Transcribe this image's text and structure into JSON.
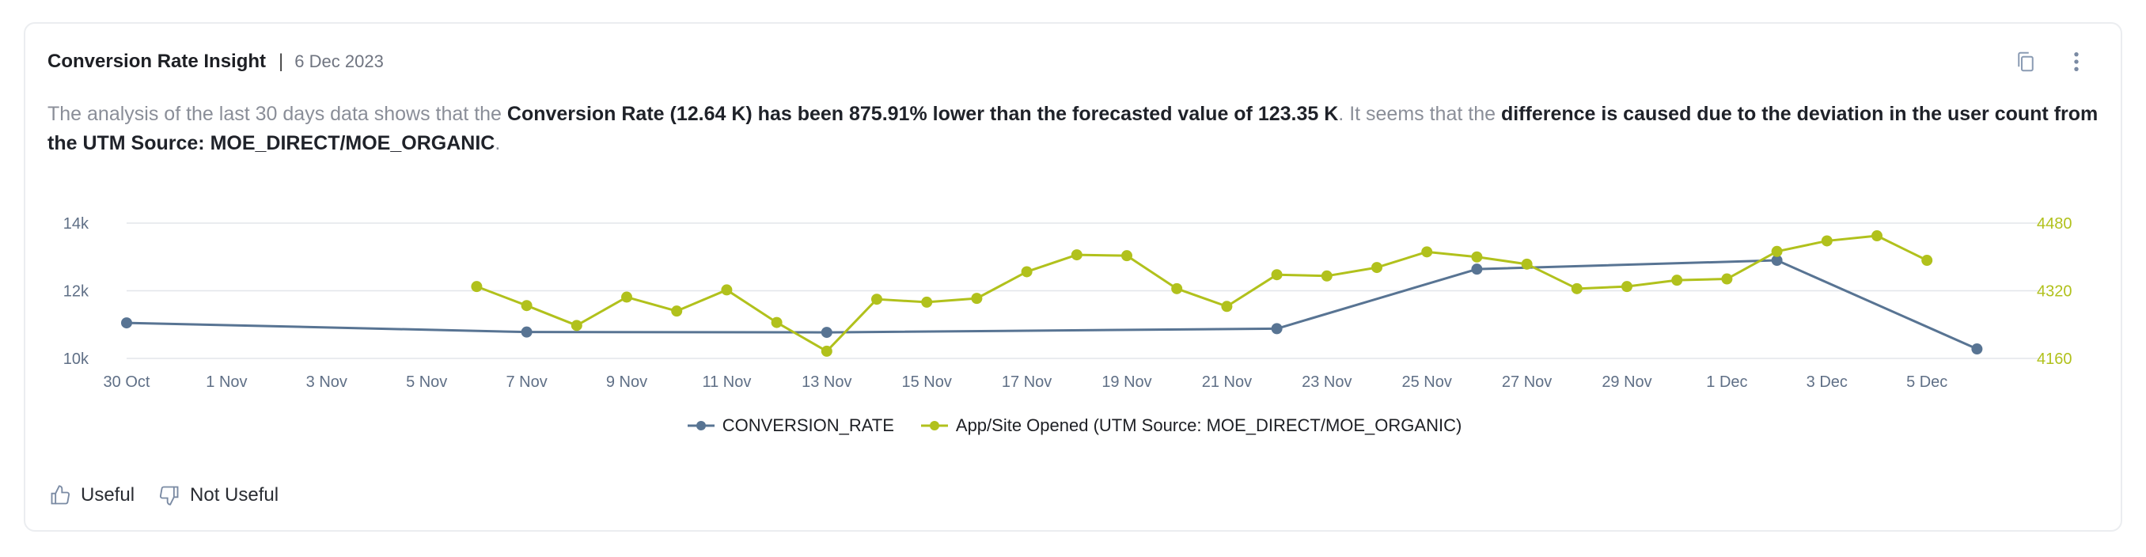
{
  "card": {
    "title": "Conversion Rate Insight",
    "separator": "|",
    "date": "6 Dec 2023",
    "icons": [
      "copy-icon",
      "more-vertical-icon"
    ]
  },
  "description": {
    "p1": "The analysis of the last 30 days data shows that the ",
    "b1": "Conversion Rate (12.64 K) has been 875.91% lower than the forecasted value of 123.35 K",
    "p2": ". It seems that the ",
    "b2": "difference is caused due to the deviation in the user count from the UTM Source: MOE_DIRECT/MOE_ORGANIC",
    "p3": "."
  },
  "chart_data": {
    "type": "line",
    "dates": [
      "30 Oct",
      "31 Oct",
      "1 Nov",
      "2 Nov",
      "3 Nov",
      "4 Nov",
      "5 Nov",
      "6 Nov",
      "7 Nov",
      "8 Nov",
      "9 Nov",
      "10 Nov",
      "11 Nov",
      "12 Nov",
      "13 Nov",
      "14 Nov",
      "15 Nov",
      "16 Nov",
      "17 Nov",
      "18 Nov",
      "19 Nov",
      "20 Nov",
      "21 Nov",
      "22 Nov",
      "23 Nov",
      "24 Nov",
      "25 Nov",
      "26 Nov",
      "27 Nov",
      "28 Nov",
      "29 Nov",
      "30 Nov",
      "1 Dec",
      "2 Dec",
      "3 Dec",
      "4 Dec",
      "5 Dec",
      "6 Dec"
    ],
    "x_tick_labels": [
      "30 Oct",
      "1 Nov",
      "3 Nov",
      "5 Nov",
      "7 Nov",
      "9 Nov",
      "11 Nov",
      "13 Nov",
      "15 Nov",
      "17 Nov",
      "19 Nov",
      "21 Nov",
      "23 Nov",
      "25 Nov",
      "27 Nov",
      "29 Nov",
      "1 Dec",
      "3 Dec",
      "5 Dec"
    ],
    "y_left": {
      "ticks": [
        "10k",
        "12k",
        "14k"
      ],
      "range": [
        10000,
        14000
      ]
    },
    "y_right": {
      "ticks": [
        "4160",
        "4320",
        "4480"
      ],
      "range": [
        4160,
        4480
      ]
    },
    "grid": true,
    "legend_position": "bottom-center",
    "series": [
      {
        "name": "CONVERSION_RATE",
        "axis": "left",
        "color": "#587493",
        "points": [
          {
            "x": "30 Oct",
            "y": 11050
          },
          {
            "x": "7 Nov",
            "y": 10780
          },
          {
            "x": "13 Nov",
            "y": 10770
          },
          {
            "x": "22 Nov",
            "y": 10880
          },
          {
            "x": "26 Nov",
            "y": 12640
          },
          {
            "x": "2 Dec",
            "y": 12900
          },
          {
            "x": "6 Dec",
            "y": 10280
          }
        ]
      },
      {
        "name": "App/Site Opened (UTM Source: MOE_DIRECT/MOE_ORGANIC)",
        "axis": "right",
        "color": "#b1c11c",
        "points": [
          {
            "x": "6 Nov",
            "y": 4330
          },
          {
            "x": "7 Nov",
            "y": 4285
          },
          {
            "x": "8 Nov",
            "y": 4238
          },
          {
            "x": "9 Nov",
            "y": 4305
          },
          {
            "x": "10 Nov",
            "y": 4272
          },
          {
            "x": "11 Nov",
            "y": 4322
          },
          {
            "x": "12 Nov",
            "y": 4245
          },
          {
            "x": "13 Nov",
            "y": 4177
          },
          {
            "x": "14 Nov",
            "y": 4300
          },
          {
            "x": "15 Nov",
            "y": 4293
          },
          {
            "x": "16 Nov",
            "y": 4302
          },
          {
            "x": "17 Nov",
            "y": 4365
          },
          {
            "x": "18 Nov",
            "y": 4405
          },
          {
            "x": "19 Nov",
            "y": 4403
          },
          {
            "x": "20 Nov",
            "y": 4325
          },
          {
            "x": "21 Nov",
            "y": 4283
          },
          {
            "x": "22 Nov",
            "y": 4358
          },
          {
            "x": "23 Nov",
            "y": 4355
          },
          {
            "x": "24 Nov",
            "y": 4375
          },
          {
            "x": "25 Nov",
            "y": 4412
          },
          {
            "x": "26 Nov",
            "y": 4400
          },
          {
            "x": "27 Nov",
            "y": 4383
          },
          {
            "x": "28 Nov",
            "y": 4325
          },
          {
            "x": "29 Nov",
            "y": 4330
          },
          {
            "x": "30 Nov",
            "y": 4345
          },
          {
            "x": "1 Dec",
            "y": 4348
          },
          {
            "x": "2 Dec",
            "y": 4413
          },
          {
            "x": "3 Dec",
            "y": 4438
          },
          {
            "x": "4 Dec",
            "y": 4450
          },
          {
            "x": "5 Dec",
            "y": 4392
          }
        ]
      }
    ]
  },
  "colors": {
    "series1": "#587493",
    "series2": "#b1c11c",
    "grid": "#e3e6ea",
    "axis_text": "#5f6f86"
  },
  "footer": {
    "useful_label": "Useful",
    "not_useful_label": "Not Useful"
  }
}
